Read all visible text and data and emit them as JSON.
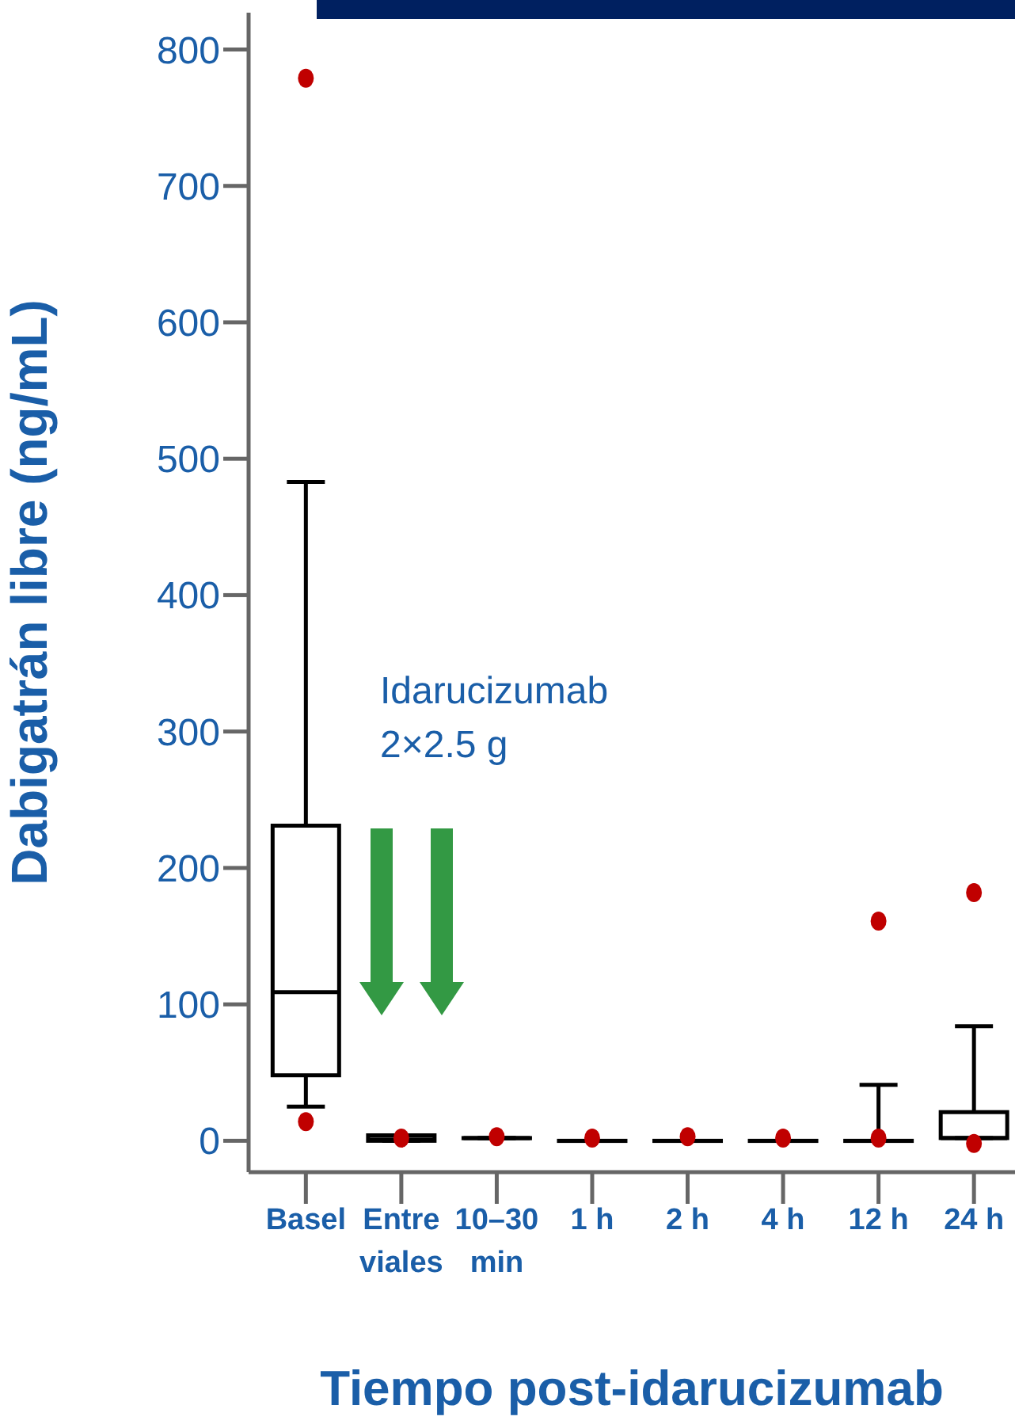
{
  "chart_data": {
    "type": "box",
    "ylabel": "Dabigatrán libre (ng/mL)",
    "xlabel": "Tiempo post-idarucizumab",
    "color": "#000000",
    "categories": [
      "Basel",
      "Entre\nviales",
      "10–30\nmin",
      "1 h",
      "2 h",
      "4 h",
      "12 h",
      "24 h"
    ],
    "ylim": [
      -23,
      827
    ],
    "yticks": [
      0,
      100,
      200,
      300,
      400,
      500,
      600,
      700,
      800
    ],
    "boxes": [
      {
        "low": 25,
        "q1": 48,
        "median": 109,
        "q3": 231,
        "high": 483
      },
      {
        "low": 0,
        "q1": 0,
        "median": 1,
        "q3": 4,
        "high": 4
      },
      {
        "low": 2,
        "q1": 2,
        "median": 2,
        "q3": 2,
        "high": 2
      },
      {
        "low": 0,
        "q1": 0,
        "median": 0,
        "q3": 0,
        "high": 0
      },
      {
        "low": 0,
        "q1": 0,
        "median": 0,
        "q3": 0,
        "high": 0
      },
      {
        "low": 0,
        "q1": 0,
        "median": 0,
        "q3": 0,
        "high": 0
      },
      {
        "low": 0,
        "q1": 0,
        "median": 0,
        "q3": 0,
        "high": 41
      },
      {
        "low": 2,
        "q1": 2,
        "median": 2,
        "q3": 21,
        "high": 84
      }
    ],
    "series": [
      {
        "type": "scatter",
        "color": "#c00000",
        "marker": "circle",
        "x": [
          "Basel",
          "Basel",
          "Entre\nviales",
          "10–30\nmin",
          "1 h",
          "2 h",
          "4 h",
          "12 h",
          "12 h",
          "24 h",
          "24 h"
        ],
        "values": [
          779,
          14,
          2,
          3,
          2,
          3,
          2,
          161,
          2,
          182,
          -2
        ]
      }
    ],
    "annotations": [
      "Idarucizumab\n2×2.5 g"
    ],
    "grid": false,
    "legend": false
  }
}
